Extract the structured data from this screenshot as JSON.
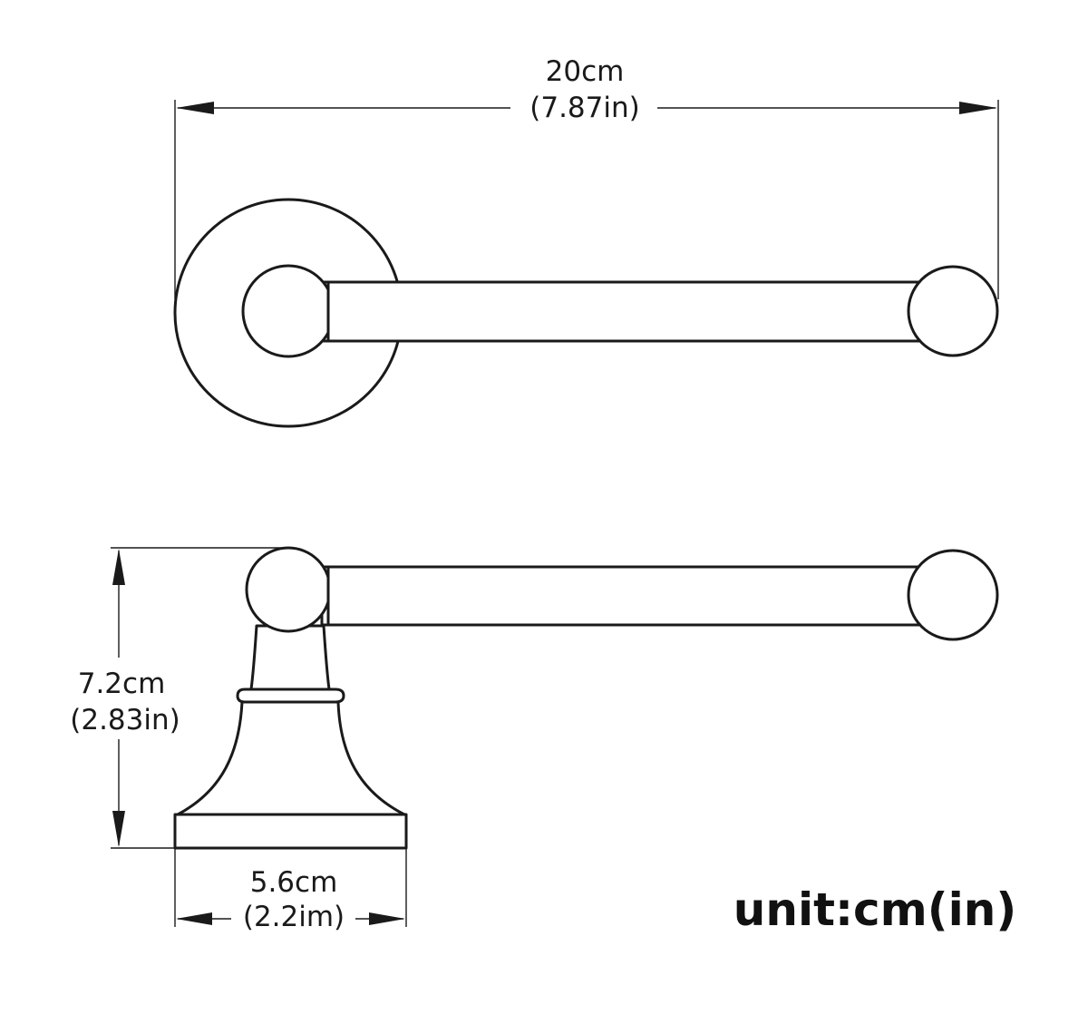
{
  "dimensions": {
    "width": {
      "metric": "20cm",
      "imperial": "(7.87in)"
    },
    "height": {
      "metric": "7.2cm",
      "imperial": "(2.83in)"
    },
    "base_width": {
      "metric": "5.6cm",
      "imperial": "(2.2im)"
    }
  },
  "unit_note": "unit:cm(in)",
  "colors": {
    "line": "#1a1a1a",
    "background": "#ffffff"
  }
}
